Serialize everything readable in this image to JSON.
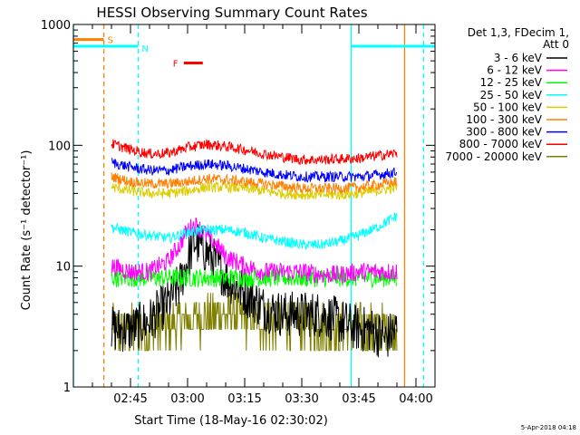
{
  "chart_data": {
    "type": "line",
    "title": "HESSI Observing Summary Count Rates",
    "xlabel": "Start Time (18-May-16 02:30:02)",
    "ylabel": "Count Rate (s⁻¹ detector⁻¹)",
    "yscale": "log",
    "ylim": [
      1,
      1000
    ],
    "xlim_minutes_after_start": [
      0,
      95
    ],
    "x_ticks": [
      {
        "minute": 15,
        "label": "02:45"
      },
      {
        "minute": 30,
        "label": "03:00"
      },
      {
        "minute": 45,
        "label": "03:15"
      },
      {
        "minute": 60,
        "label": "03:30"
      },
      {
        "minute": 75,
        "label": "03:45"
      },
      {
        "minute": 90,
        "label": "04:00"
      }
    ],
    "y_ticks": [
      {
        "value": 1,
        "label": "1"
      },
      {
        "value": 10,
        "label": "10"
      },
      {
        "value": 100,
        "label": "100"
      },
      {
        "value": 1000,
        "label": "1000"
      }
    ],
    "legend_title": "Det 1,3, FDecim 1,\nAtt 0",
    "legend_position": "right",
    "series": [
      {
        "name": "3 - 6 keV",
        "color": "#000000",
        "x": [
          10,
          15,
          20,
          25,
          28,
          30,
          32,
          35,
          40,
          45,
          50,
          55,
          60,
          65,
          70,
          75,
          78,
          82,
          85
        ],
        "y": [
          3,
          3,
          3.5,
          5,
          7,
          11,
          16,
          13,
          8,
          6,
          4.5,
          4,
          4,
          4,
          3.5,
          3,
          3,
          2.5,
          3
        ]
      },
      {
        "name": "6 - 12 keV",
        "color": "#ff00ff",
        "x": [
          10,
          15,
          20,
          25,
          28,
          30,
          32,
          35,
          40,
          45,
          50,
          55,
          60,
          65,
          70,
          75,
          80,
          85
        ],
        "y": [
          10,
          9,
          9,
          11,
          15,
          20,
          22,
          18,
          12,
          10,
          9,
          9,
          9,
          8.5,
          8.5,
          9,
          9,
          9
        ]
      },
      {
        "name": "12 - 25 keV",
        "color": "#00ff00",
        "x": [
          10,
          20,
          30,
          40,
          50,
          60,
          70,
          80,
          85
        ],
        "y": [
          8,
          8,
          8,
          8,
          8,
          8,
          8,
          8,
          8
        ]
      },
      {
        "name": "25 - 50 keV",
        "color": "#00ffff",
        "x": [
          10,
          15,
          20,
          25,
          30,
          35,
          40,
          45,
          50,
          55,
          60,
          65,
          70,
          75,
          80,
          85
        ],
        "y": [
          21,
          19,
          18,
          17,
          19,
          20,
          20,
          19,
          17,
          16,
          15,
          15,
          16,
          18,
          21,
          26
        ]
      },
      {
        "name": "50 - 100 keV",
        "color": "#ddcc00",
        "x": [
          10,
          15,
          20,
          25,
          30,
          35,
          40,
          45,
          50,
          55,
          60,
          65,
          70,
          75,
          80,
          85
        ],
        "y": [
          45,
          42,
          40,
          40,
          42,
          45,
          45,
          44,
          42,
          40,
          39,
          39,
          39,
          40,
          42,
          45
        ]
      },
      {
        "name": "100 - 300 keV",
        "color": "#ff8000",
        "x": [
          10,
          15,
          20,
          25,
          30,
          35,
          40,
          45,
          50,
          55,
          60,
          65,
          70,
          75,
          80,
          85
        ],
        "y": [
          55,
          50,
          48,
          48,
          50,
          53,
          52,
          50,
          48,
          46,
          44,
          44,
          44,
          45,
          47,
          50
        ]
      },
      {
        "name": "300 - 800 keV",
        "color": "#0000ff",
        "x": [
          10,
          15,
          20,
          25,
          30,
          35,
          40,
          45,
          50,
          55,
          60,
          65,
          70,
          75,
          80,
          85
        ],
        "y": [
          72,
          66,
          62,
          62,
          67,
          70,
          68,
          64,
          60,
          57,
          55,
          55,
          55,
          55,
          57,
          60
        ]
      },
      {
        "name": "800 - 7000 keV",
        "color": "#ff0000",
        "x": [
          10,
          15,
          20,
          25,
          30,
          35,
          40,
          45,
          50,
          55,
          60,
          65,
          70,
          75,
          80,
          85
        ],
        "y": [
          103,
          92,
          85,
          86,
          96,
          102,
          98,
          92,
          85,
          80,
          76,
          76,
          77,
          78,
          82,
          86
        ]
      },
      {
        "name": "7000 - 20000 keV",
        "color": "#808000",
        "x": [
          10,
          20,
          30,
          40,
          50,
          60,
          70,
          80,
          85
        ],
        "y": [
          3,
          3,
          3.5,
          4,
          3.5,
          3.5,
          3,
          3,
          3
        ]
      }
    ],
    "annotations": [
      {
        "label": "S",
        "color": "#ff8000",
        "x_start": 0,
        "x_end": 8,
        "level": 750
      },
      {
        "label": "N",
        "color": "#00ffff",
        "x_start": 0,
        "x_end": 17,
        "level": 660
      },
      {
        "label": "N",
        "color": "#00ffff",
        "x_start": 73,
        "x_end": 95,
        "level": 660
      },
      {
        "label": "F",
        "color": "#ff0000",
        "x_start": 29,
        "x_end": 34,
        "level": 480
      }
    ],
    "vertical_lines": [
      {
        "color": "#00ffff",
        "minute": 0,
        "style": "solid"
      },
      {
        "color": "#ff8000",
        "minute": 8,
        "style": "dashed"
      },
      {
        "color": "#00ffff",
        "minute": 17,
        "style": "dashed"
      },
      {
        "color": "#00ffff",
        "minute": 73,
        "style": "solid"
      },
      {
        "color": "#ff8000",
        "minute": 87,
        "style": "solid"
      },
      {
        "color": "#00ffff",
        "minute": 92,
        "style": "dashed"
      }
    ],
    "grid": false
  },
  "footer_timestamp": "5-Apr-2018 04:18"
}
